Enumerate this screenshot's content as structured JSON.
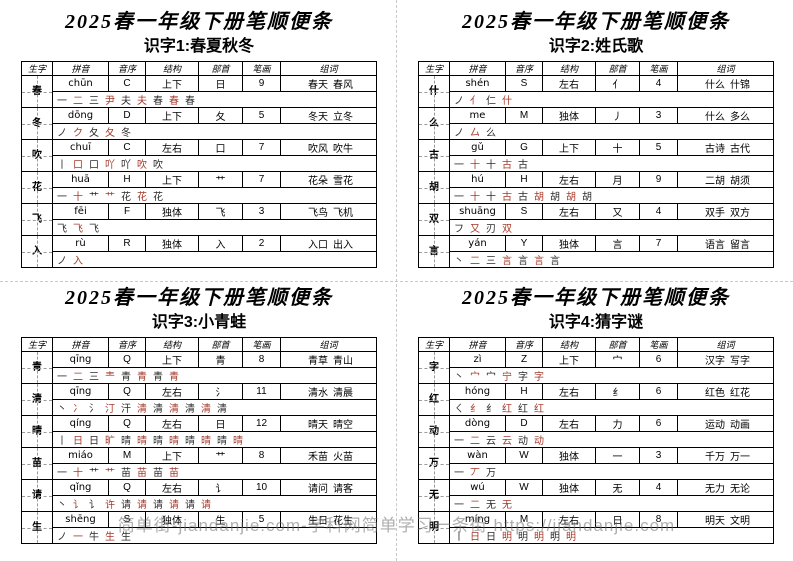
{
  "watermark": "简单街-jiandanjie.com-学科网简单学习一条街 https://jiandanjie.com",
  "columns": [
    "生字",
    "拼音",
    "音序",
    "结构",
    "部首",
    "笔画",
    "组词"
  ],
  "sections": [
    {
      "title": "2025春一年级下册笔顺便条",
      "subtitle": "识字1:春夏秋冬",
      "rows": [
        {
          "char": "春",
          "pinyin": "chūn",
          "initial": "C",
          "structure": "上下",
          "radical": "日",
          "strokes": "9",
          "words": "春天  春风",
          "order": "一 二 三 尹 夫 夫 春 春 春"
        },
        {
          "char": "冬",
          "pinyin": "dōng",
          "initial": "D",
          "structure": "上下",
          "radical": "夂",
          "strokes": "5",
          "words": "冬天  立冬",
          "order": "ノ ク 夂 夂 冬"
        },
        {
          "char": "吹",
          "pinyin": "chuī",
          "initial": "C",
          "structure": "左右",
          "radical": "口",
          "strokes": "7",
          "words": "吹风  吹牛",
          "order": "丨 口 口 吖 吖 吹 吹"
        },
        {
          "char": "花",
          "pinyin": "huā",
          "initial": "H",
          "structure": "上下",
          "radical": "艹",
          "strokes": "7",
          "words": "花朵  雪花",
          "order": "一 十 艹 艹 花 花 花"
        },
        {
          "char": "飞",
          "pinyin": "fēi",
          "initial": "F",
          "structure": "独体",
          "radical": "飞",
          "strokes": "3",
          "words": "飞鸟  飞机",
          "order": "飞 飞 飞"
        },
        {
          "char": "入",
          "pinyin": "rù",
          "initial": "R",
          "structure": "独体",
          "radical": "入",
          "strokes": "2",
          "words": "入口  出入",
          "order": "ノ 入"
        }
      ]
    },
    {
      "title": "2025春一年级下册笔顺便条",
      "subtitle": "识字2:姓氏歌",
      "rows": [
        {
          "char": "什",
          "pinyin": "shén",
          "initial": "S",
          "structure": "左右",
          "radical": "亻",
          "strokes": "4",
          "words": "什么  什锦",
          "order": "ノ 亻 仁 什"
        },
        {
          "char": "么",
          "pinyin": "me",
          "initial": "M",
          "structure": "独体",
          "radical": "丿",
          "strokes": "3",
          "words": "什么  多么",
          "order": "ノ 厶 么"
        },
        {
          "char": "古",
          "pinyin": "gǔ",
          "initial": "G",
          "structure": "上下",
          "radical": "十",
          "strokes": "5",
          "words": "古诗  古代",
          "order": "一 十 十 古 古"
        },
        {
          "char": "胡",
          "pinyin": "hú",
          "initial": "H",
          "structure": "左右",
          "radical": "月",
          "strokes": "9",
          "words": "二胡  胡须",
          "order": "一 十 十 古 古 胡 胡 胡 胡"
        },
        {
          "char": "双",
          "pinyin": "shuāng",
          "initial": "S",
          "structure": "左右",
          "radical": "又",
          "strokes": "4",
          "words": "双手  双方",
          "order": "フ 又 刃 双"
        },
        {
          "char": "言",
          "pinyin": "yán",
          "initial": "Y",
          "structure": "独体",
          "radical": "言",
          "strokes": "7",
          "words": "语言  留言",
          "order": "丶 二 三 言 言 言 言"
        }
      ]
    },
    {
      "title": "2025春一年级下册笔顺便条",
      "subtitle": "识字3:小青蛙",
      "rows": [
        {
          "char": "青",
          "pinyin": "qīng",
          "initial": "Q",
          "structure": "上下",
          "radical": "青",
          "strokes": "8",
          "words": "青草  青山",
          "order": "一 二 三 龶 青 青 青 青"
        },
        {
          "char": "清",
          "pinyin": "qīng",
          "initial": "Q",
          "structure": "左右",
          "radical": "氵",
          "strokes": "11",
          "words": "清水  清晨",
          "order": "丶 冫 氵 汀 汗 清 清 清 清 清 清"
        },
        {
          "char": "晴",
          "pinyin": "qíng",
          "initial": "Q",
          "structure": "左右",
          "radical": "日",
          "strokes": "12",
          "words": "晴天  晴空",
          "order": "丨 日 日 旷 晴 晴 晴 晴 晴 晴 晴 晴"
        },
        {
          "char": "苗",
          "pinyin": "miáo",
          "initial": "M",
          "structure": "上下",
          "radical": "艹",
          "strokes": "8",
          "words": "禾苗  火苗",
          "order": "一 十 艹 艹 苗 苗 苗 苗"
        },
        {
          "char": "请",
          "pinyin": "qǐng",
          "initial": "Q",
          "structure": "左右",
          "radical": "讠",
          "strokes": "10",
          "words": "请问  请客",
          "order": "丶 讠 讠 许 请 请 请 请 请 请"
        },
        {
          "char": "生",
          "pinyin": "shēng",
          "initial": "S",
          "structure": "独体",
          "radical": "生",
          "strokes": "5",
          "words": "生日  花生",
          "order": "ノ 一 牛 生 生"
        }
      ]
    },
    {
      "title": "2025春一年级下册笔顺便条",
      "subtitle": "识字4:猜字谜",
      "rows": [
        {
          "char": "字",
          "pinyin": "zì",
          "initial": "Z",
          "structure": "上下",
          "radical": "宀",
          "strokes": "6",
          "words": "汉字  写字",
          "order": "丶 宀 宀 宁 字 字"
        },
        {
          "char": "红",
          "pinyin": "hóng",
          "initial": "H",
          "structure": "左右",
          "radical": "纟",
          "strokes": "6",
          "words": "红色  红花",
          "order": "ㄑ 纟 纟 红 红 红"
        },
        {
          "char": "动",
          "pinyin": "dòng",
          "initial": "D",
          "structure": "左右",
          "radical": "力",
          "strokes": "6",
          "words": "运动  动画",
          "order": "一 二 云 云 动 动"
        },
        {
          "char": "万",
          "pinyin": "wàn",
          "initial": "W",
          "structure": "独体",
          "radical": "一",
          "strokes": "3",
          "words": "千万  万一",
          "order": "一 丆 万"
        },
        {
          "char": "无",
          "pinyin": "wú",
          "initial": "W",
          "structure": "独体",
          "radical": "无",
          "strokes": "4",
          "words": "无力  无论",
          "order": "一 二 无 无"
        },
        {
          "char": "明",
          "pinyin": "míng",
          "initial": "M",
          "structure": "左右",
          "radical": "日",
          "strokes": "8",
          "words": "明天  文明",
          "order": "丨 日 日 明 明 明 明 明"
        }
      ]
    }
  ]
}
